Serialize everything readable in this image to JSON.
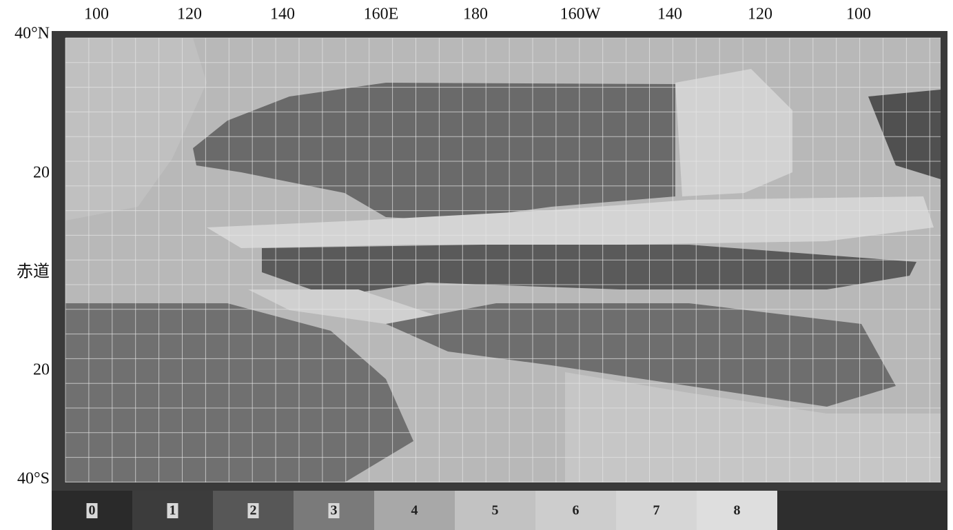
{
  "longitude_labels": [
    "100",
    "120",
    "140",
    "160E",
    "180",
    "160W",
    "140",
    "120",
    "100"
  ],
  "latitude_labels": [
    "40°N",
    "20",
    "赤道",
    "20",
    "40°S"
  ],
  "legend": {
    "levels": [
      "0",
      "1",
      "2",
      "3",
      "4",
      "5",
      "6",
      "7",
      "8"
    ]
  }
}
